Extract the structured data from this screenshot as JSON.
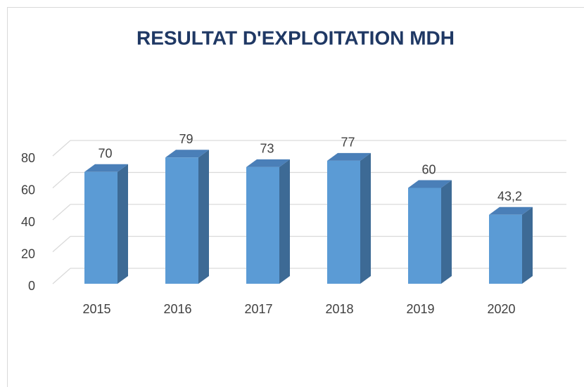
{
  "chart_data": {
    "type": "bar3d",
    "title": "RESULTAT D'EXPLOITATION MDH",
    "categories": [
      "2015",
      "2016",
      "2017",
      "2018",
      "2019",
      "2020"
    ],
    "values": [
      70,
      79,
      73,
      77,
      60,
      43.2
    ],
    "value_labels": [
      "70",
      "79",
      "73",
      "77",
      "60",
      "43,2"
    ],
    "color": "#5b9bd5",
    "ylim": [
      0,
      80
    ],
    "yticks": [
      0,
      20,
      40,
      60,
      80
    ],
    "grid": true
  }
}
